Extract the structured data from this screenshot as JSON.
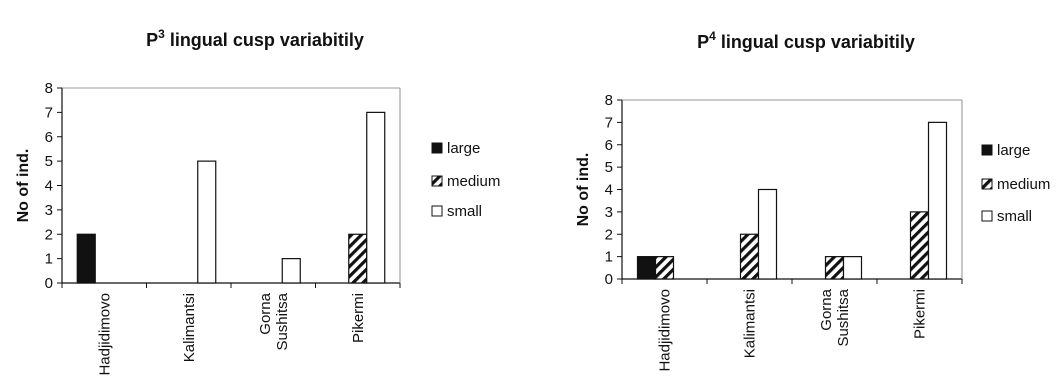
{
  "chart_data": [
    {
      "type": "bar",
      "title_prefix": "P",
      "title_sup": "3",
      "title_rest": " lingual cusp variabitily",
      "ylabel": "No of ind.",
      "xlabel": "",
      "ylim": [
        0,
        8
      ],
      "yticks": [
        0,
        1,
        2,
        3,
        4,
        5,
        6,
        7,
        8
      ],
      "grid": false,
      "legend_position": "right",
      "categories": [
        [
          "Hadjidimovo"
        ],
        [
          "Kalimantsi"
        ],
        [
          "Gorna",
          "Sushitsa"
        ],
        [
          "Pikermi"
        ]
      ],
      "series": [
        {
          "name": "large",
          "pattern": "solid",
          "values": [
            2,
            0,
            0,
            0
          ]
        },
        {
          "name": "medium",
          "pattern": "hatch",
          "values": [
            0,
            0,
            0,
            2
          ]
        },
        {
          "name": "small",
          "pattern": "empty",
          "values": [
            0,
            5,
            1,
            7
          ]
        }
      ]
    },
    {
      "type": "bar",
      "title_prefix": "P",
      "title_sup": "4",
      "title_rest": " lingual cusp variabitily",
      "ylabel": "No of ind.",
      "xlabel": "",
      "ylim": [
        0,
        8
      ],
      "yticks": [
        0,
        1,
        2,
        3,
        4,
        5,
        6,
        7,
        8
      ],
      "grid": false,
      "legend_position": "right",
      "categories": [
        [
          "Hadjidimovo"
        ],
        [
          "Kalimantsi"
        ],
        [
          "Gorna",
          "Sushitsa"
        ],
        [
          "Pikermi"
        ]
      ],
      "series": [
        {
          "name": "large",
          "pattern": "solid",
          "values": [
            1,
            0,
            0,
            0
          ]
        },
        {
          "name": "medium",
          "pattern": "hatch",
          "values": [
            1,
            2,
            1,
            3
          ]
        },
        {
          "name": "small",
          "pattern": "empty",
          "values": [
            0,
            4,
            1,
            7
          ]
        }
      ]
    }
  ],
  "colors": {
    "ink": "#111111",
    "fill_empty": "#ffffff"
  }
}
